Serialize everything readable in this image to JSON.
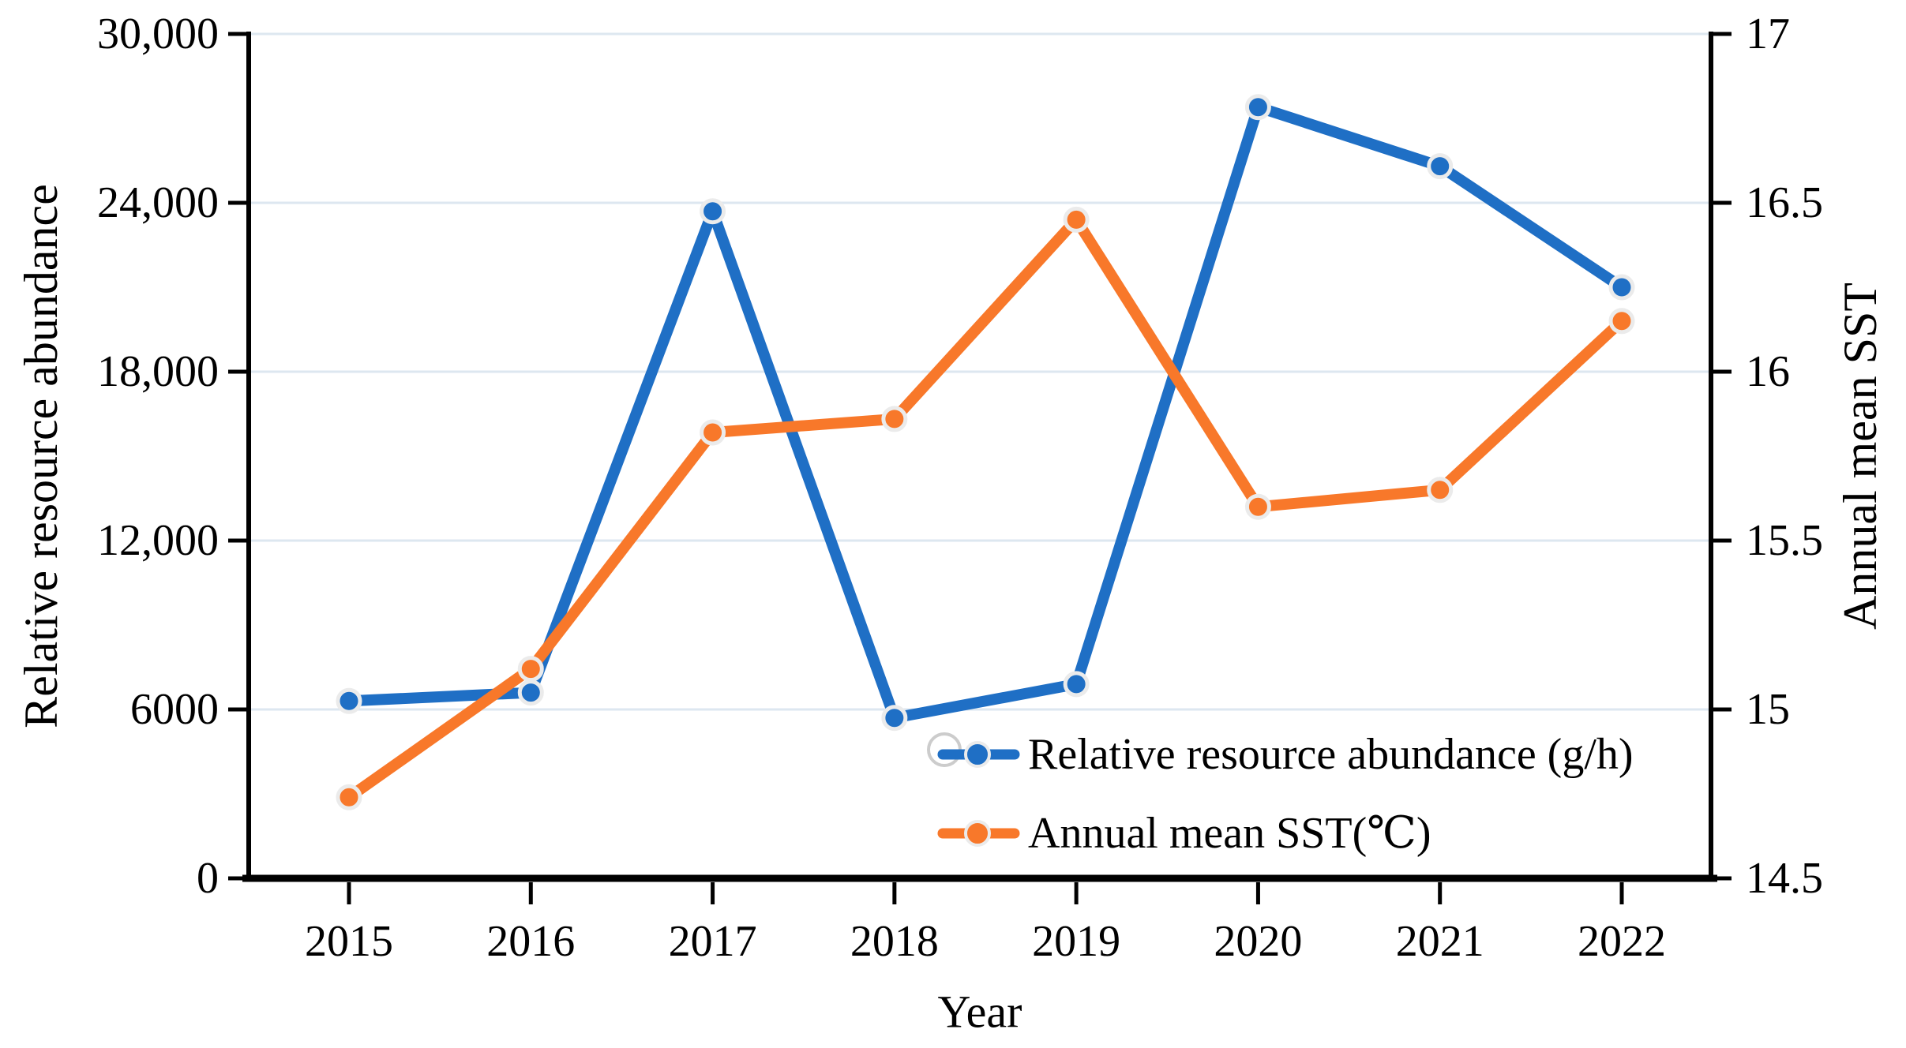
{
  "figure": {
    "left_axis_title": "Relative resource abundance",
    "right_axis_title": "Annual mean SST",
    "x_axis_title": "Year",
    "legend": {
      "item1": "Relative resource abundance (g/h)",
      "item2": "Annual mean SST(℃)"
    }
  },
  "chart_data": {
    "type": "line",
    "title": "",
    "x": [
      2015,
      2016,
      2017,
      2018,
      2019,
      2020,
      2021,
      2022
    ],
    "xlabel": "Year",
    "x_tick_labels": [
      "2015",
      "2016",
      "2017",
      "2018",
      "2019",
      "2020",
      "2021",
      "2022"
    ],
    "series": [
      {
        "name": "Relative resource abundance (g/h)",
        "axis": "left",
        "color": "#1f6fc5",
        "marker": "circle",
        "line_style": "solid",
        "values": [
          6300,
          6600,
          23700,
          5700,
          6900,
          27400,
          25300,
          21000
        ]
      },
      {
        "name": "Annual mean SST(℃)",
        "axis": "right",
        "color": "#f8782a",
        "marker": "circle",
        "line_style": "solid",
        "values": [
          14.74,
          15.12,
          15.82,
          15.86,
          16.45,
          15.6,
          15.65,
          16.15
        ]
      }
    ],
    "left_axis": {
      "label": "Relative resource abundance",
      "min": 0,
      "max": 30000,
      "step": 6000,
      "tick_labels": [
        "0",
        "6000",
        "12,000",
        "18,000",
        "24,000",
        "30,000"
      ]
    },
    "right_axis": {
      "label": "Annual mean SST",
      "min": 14.5,
      "max": 17,
      "step": 0.5,
      "tick_labels": [
        "14.5",
        "15",
        "15.5",
        "16",
        "16.5",
        "17"
      ]
    },
    "grid": "horizontal",
    "legend_position": "inside lower right"
  },
  "colors": {
    "series_blue": "#1f6fc5",
    "series_orange": "#f8782a",
    "gridline": "#dde7f0",
    "axis": "#000000",
    "marker_ring": "#ebebeb",
    "stray_circle_ring": "#cccccc",
    "background": "#ffffff"
  }
}
